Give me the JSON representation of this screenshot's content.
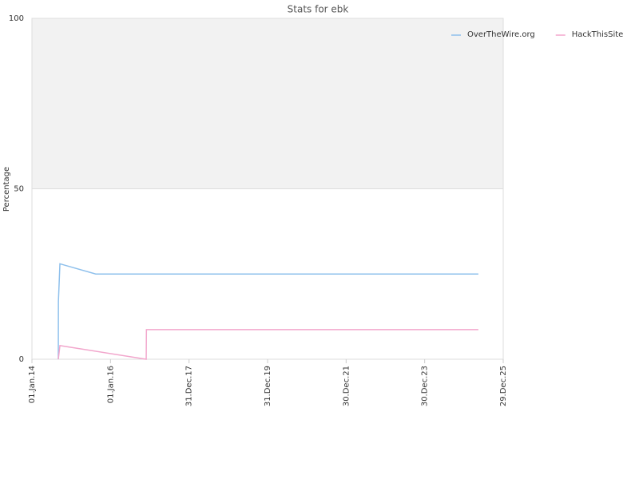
{
  "chart_data": {
    "type": "line",
    "title": "Stats for ebk",
    "y_label": "Percentage",
    "series": [
      {
        "name": "OverTheWire.org",
        "color": "#8ec0ec",
        "x": [
          "2014-09-03",
          "2014-09-04",
          "2014-09-18",
          "2015-08-17",
          "2025-05-12"
        ],
        "values": [
          0,
          17,
          28,
          25,
          25
        ]
      },
      {
        "name": "HackThisSite",
        "color": "#f2a6cc",
        "x": [
          "2014-09-03",
          "2014-09-18",
          "2016-11-28",
          "2016-11-30",
          "2025-05-12"
        ],
        "values": [
          0,
          4,
          0,
          8.7,
          8.7
        ]
      }
    ],
    "xlim": [
      "2014-01-01",
      "2025-12-29"
    ],
    "xticks": [
      {
        "value": "2014-01-01",
        "label": "01.Jan.14"
      },
      {
        "value": "2016-01-01",
        "label": "01.Jan.16"
      },
      {
        "value": "2017-12-31",
        "label": "31.Dec.17"
      },
      {
        "value": "2019-12-31",
        "label": "31.Dec.19"
      },
      {
        "value": "2021-12-30",
        "label": "30.Dec.21"
      },
      {
        "value": "2023-12-30",
        "label": "30.Dec.23"
      },
      {
        "value": "2025-12-29",
        "label": "29.Dec.25"
      }
    ],
    "ylim": [
      0,
      100
    ],
    "yticks": [
      0,
      50,
      100
    ],
    "grid": true,
    "band": {
      "from": 50,
      "to": 100,
      "color": "#f2f2f2"
    },
    "legend": "top-right"
  }
}
